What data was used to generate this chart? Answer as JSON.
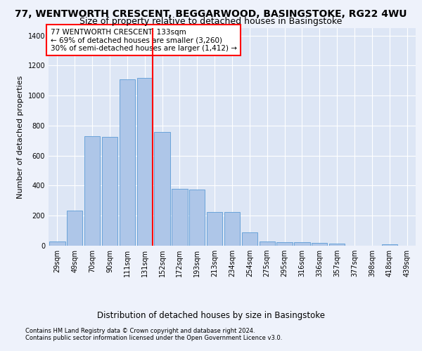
{
  "title1": "77, WENTWORTH CRESCENT, BEGGARWOOD, BASINGSTOKE, RG22 4WU",
  "title2": "Size of property relative to detached houses in Basingstoke",
  "xlabel": "Distribution of detached houses by size in Basingstoke",
  "ylabel": "Number of detached properties",
  "footnote1": "Contains HM Land Registry data © Crown copyright and database right 2024.",
  "footnote2": "Contains public sector information licensed under the Open Government Licence v3.0.",
  "annotation_line1": "77 WENTWORTH CRESCENT: 133sqm",
  "annotation_line2": "← 69% of detached houses are smaller (3,260)",
  "annotation_line3": "30% of semi-detached houses are larger (1,412) →",
  "bar_categories": [
    "29sqm",
    "49sqm",
    "70sqm",
    "90sqm",
    "111sqm",
    "131sqm",
    "152sqm",
    "172sqm",
    "193sqm",
    "213sqm",
    "234sqm",
    "254sqm",
    "275sqm",
    "295sqm",
    "316sqm",
    "336sqm",
    "357sqm",
    "377sqm",
    "398sqm",
    "418sqm",
    "439sqm"
  ],
  "bar_values": [
    30,
    235,
    730,
    725,
    1110,
    1120,
    760,
    380,
    375,
    225,
    225,
    90,
    30,
    25,
    22,
    18,
    12,
    0,
    0,
    10,
    0
  ],
  "bar_color": "#aec6e8",
  "bar_edge_color": "#5b9bd5",
  "vline_color": "red",
  "vline_x_index": 5,
  "ylim": [
    0,
    1450
  ],
  "yticks": [
    0,
    200,
    400,
    600,
    800,
    1000,
    1200,
    1400
  ],
  "background_color": "#eef2fb",
  "plot_bg_color": "#dde6f5",
  "grid_color": "#ffffff",
  "title1_fontsize": 10,
  "title2_fontsize": 9,
  "xlabel_fontsize": 8.5,
  "ylabel_fontsize": 8,
  "tick_fontsize": 7,
  "annotation_fontsize": 7.5,
  "footnote_fontsize": 6
}
